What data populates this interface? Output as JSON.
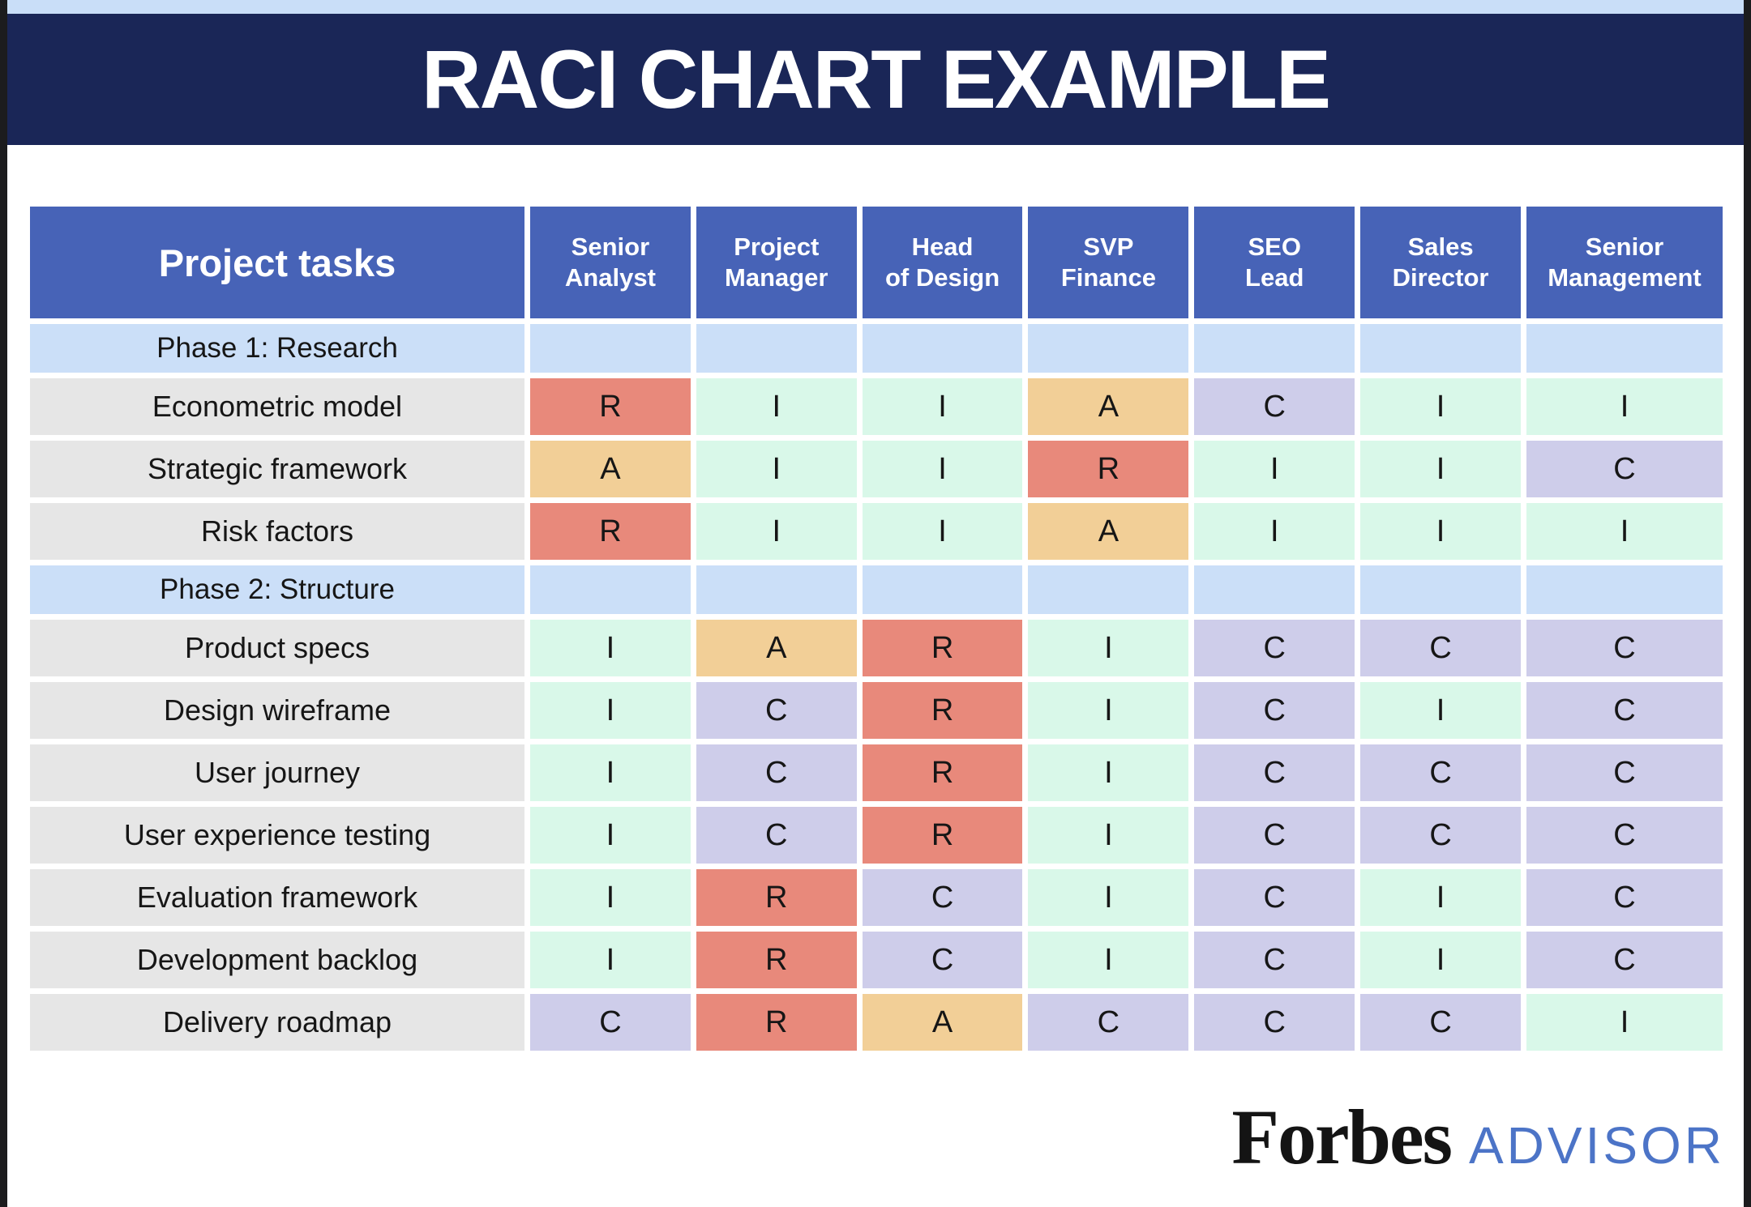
{
  "title": "RACI CHART EXAMPLE",
  "chart_data": {
    "type": "table",
    "title": "RACI CHART EXAMPLE",
    "task_column_header": "Project tasks",
    "columns": [
      "Senior Analyst",
      "Project Manager",
      "Head of Design",
      "SVP Finance",
      "SEO Lead",
      "Sales Director",
      "Senior Management"
    ],
    "rows": [
      {
        "type": "phase",
        "label": "Phase 1: Research",
        "cells": []
      },
      {
        "type": "task",
        "label": "Econometric model",
        "cells": [
          "R",
          "I",
          "I",
          "A",
          "C",
          "I",
          "I"
        ]
      },
      {
        "type": "task",
        "label": "Strategic framework",
        "cells": [
          "A",
          "I",
          "I",
          "R",
          "I",
          "I",
          "C"
        ]
      },
      {
        "type": "task",
        "label": "Risk factors",
        "cells": [
          "R",
          "I",
          "I",
          "A",
          "I",
          "I",
          "I"
        ]
      },
      {
        "type": "phase",
        "label": "Phase 2: Structure",
        "cells": []
      },
      {
        "type": "task",
        "label": "Product specs",
        "cells": [
          "I",
          "A",
          "R",
          "I",
          "C",
          "C",
          "C"
        ]
      },
      {
        "type": "task",
        "label": "Design wireframe",
        "cells": [
          "I",
          "C",
          "R",
          "I",
          "C",
          "I",
          "C"
        ]
      },
      {
        "type": "task",
        "label": "User journey",
        "cells": [
          "I",
          "C",
          "R",
          "I",
          "C",
          "C",
          "C"
        ]
      },
      {
        "type": "task",
        "label": "User experience testing",
        "cells": [
          "I",
          "C",
          "R",
          "I",
          "C",
          "C",
          "C"
        ]
      },
      {
        "type": "task",
        "label": "Evaluation framework",
        "cells": [
          "I",
          "R",
          "C",
          "I",
          "C",
          "I",
          "C"
        ]
      },
      {
        "type": "task",
        "label": "Development backlog",
        "cells": [
          "I",
          "R",
          "C",
          "I",
          "C",
          "I",
          "C"
        ]
      },
      {
        "type": "task",
        "label": "Delivery roadmap",
        "cells": [
          "C",
          "R",
          "A",
          "C",
          "C",
          "C",
          "I"
        ]
      }
    ],
    "cell_colors": {
      "R": "#e8897b",
      "A": "#f2cf97",
      "C": "#cecdea",
      "I": "#d9f8e9"
    }
  },
  "branding": {
    "brand": "Forbes",
    "suffix": "ADVISOR"
  },
  "colors": {
    "title_band": "#1a2657",
    "top_strip": "#c9def8",
    "header_blue": "#4763b7",
    "phase_row_blue": "#cbdff8",
    "task_label_gray": "#e6e6e6",
    "frame_edge_black": "#1c1c1e",
    "advisor_blue": "#4c74c7"
  }
}
